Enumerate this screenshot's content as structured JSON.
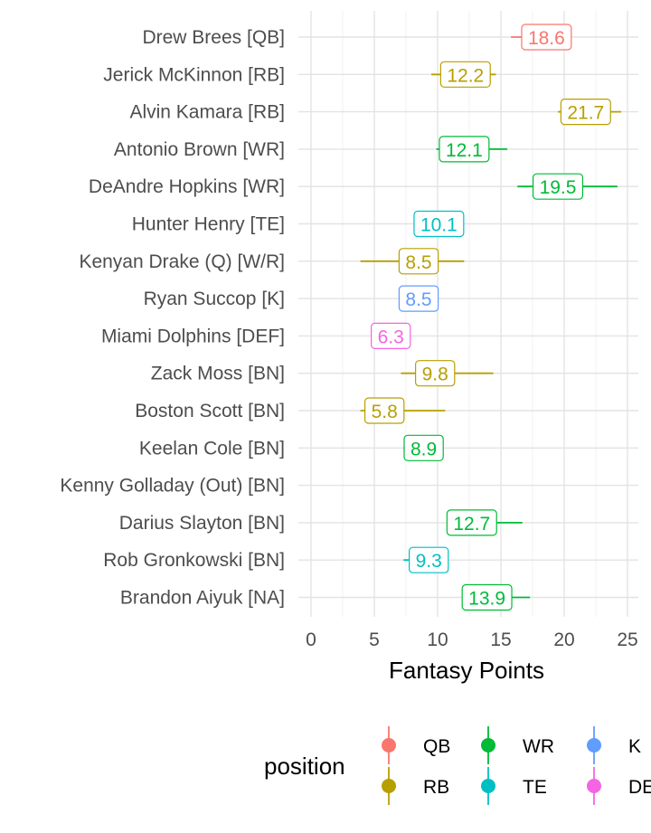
{
  "chart_data": {
    "type": "scatter",
    "title": "",
    "xlabel": "Fantasy Points",
    "ylabel": "",
    "xlim": [
      -1.0,
      26.0
    ],
    "xticks": [
      0,
      5,
      10,
      15,
      20,
      25
    ],
    "grid": true,
    "legend_title": "position",
    "legend_placement": "bottom",
    "legend": [
      {
        "name": "QB",
        "color": "#F8766D"
      },
      {
        "name": "WR",
        "color": "#00BA38"
      },
      {
        "name": "K",
        "color": "#619CFF"
      },
      {
        "name": "RB",
        "color": "#B79F00"
      },
      {
        "name": "TE",
        "color": "#00BFC4"
      },
      {
        "name": "DEF",
        "color": "#F564E3"
      }
    ],
    "players": [
      {
        "name": "Drew Brees [QB]",
        "position": "QB",
        "value": 18.6,
        "label": "18.6",
        "low": 15.8,
        "high": 18.6
      },
      {
        "name": "Jerick McKinnon [RB]",
        "position": "RB",
        "value": 12.2,
        "label": "12.2",
        "low": 9.5,
        "high": 14.6
      },
      {
        "name": "Alvin Kamara [RB]",
        "position": "RB",
        "value": 21.7,
        "label": "21.7",
        "low": 19.5,
        "high": 24.5
      },
      {
        "name": "Antonio Brown [WR]",
        "position": "WR",
        "value": 12.1,
        "label": "12.1",
        "low": 9.9,
        "high": 15.5
      },
      {
        "name": "DeAndre Hopkins [WR]",
        "position": "WR",
        "value": 19.5,
        "label": "19.5",
        "low": 16.3,
        "high": 24.2
      },
      {
        "name": "Hunter Henry [TE]",
        "position": "TE",
        "value": 10.1,
        "label": "10.1",
        "low": 9.0,
        "high": 11.3
      },
      {
        "name": "Kenyan Drake (Q) [W/R]",
        "position": "RB",
        "value": 8.5,
        "label": "8.5",
        "low": 3.9,
        "high": 12.1
      },
      {
        "name": "Ryan Succop [K]",
        "position": "K",
        "value": 8.5,
        "label": "8.5",
        "low": 8.5,
        "high": 8.5
      },
      {
        "name": "Miami Dolphins [DEF]",
        "position": "DEF",
        "value": 6.3,
        "label": "6.3",
        "low": 6.3,
        "high": 6.3
      },
      {
        "name": "Zack Moss [BN]",
        "position": "RB",
        "value": 9.8,
        "label": "9.8",
        "low": 7.1,
        "high": 14.4
      },
      {
        "name": "Boston Scott [BN]",
        "position": "RB",
        "value": 5.8,
        "label": "5.8",
        "low": 3.9,
        "high": 10.6
      },
      {
        "name": "Keelan Cole [BN]",
        "position": "WR",
        "value": 8.9,
        "label": "8.9",
        "low": 7.3,
        "high": 9.3
      },
      {
        "name": "Kenny Golladay (Out) [BN]",
        "position": "WR",
        "value": null,
        "label": "",
        "low": null,
        "high": null
      },
      {
        "name": "Darius Slayton [BN]",
        "position": "WR",
        "value": 12.7,
        "label": "12.7",
        "low": 11.5,
        "high": 16.7
      },
      {
        "name": "Rob Gronkowski [BN]",
        "position": "TE",
        "value": 9.3,
        "label": "9.3",
        "low": 7.3,
        "high": 10.0
      },
      {
        "name": "Brandon Aiyuk [NA]",
        "position": "WR",
        "value": 13.9,
        "label": "13.9",
        "low": 12.0,
        "high": 17.3
      }
    ]
  }
}
